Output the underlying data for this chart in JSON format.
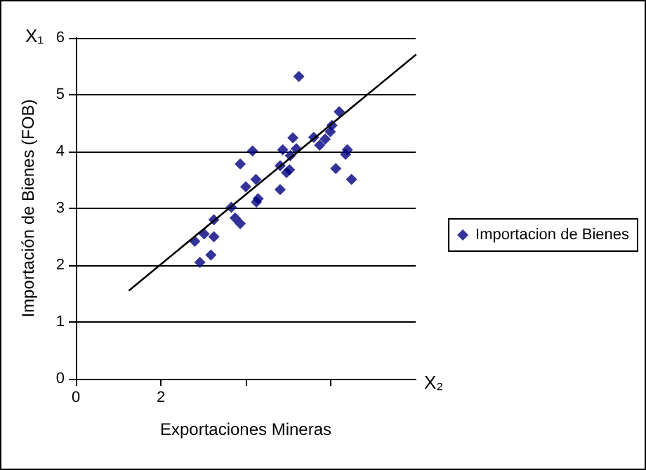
{
  "chart_data": {
    "type": "scatter",
    "xlabel": "Exportaciones Mineras",
    "ylabel": "Importación de Bienes (FOB)",
    "annotations": [
      "X₁",
      "X₂"
    ],
    "xlim": [
      0,
      8
    ],
    "xticks": [
      0,
      2,
      {
        "value": 4,
        "label": null
      },
      {
        "value": 6,
        "label": null
      }
    ],
    "ylim": [
      0,
      6
    ],
    "yticks": [
      0,
      1,
      2,
      3,
      4,
      5,
      6
    ],
    "grid": "y",
    "legend": "right",
    "marker": "diamond",
    "series": [
      {
        "name": "Importacion de Bienes",
        "color": "#000080",
        "x": [
          5.25,
          6.2,
          6.03,
          5.99,
          5.87,
          5.6,
          5.74,
          5.11,
          4.87,
          5.19,
          5.05,
          4.16,
          6.39,
          6.35,
          3.87,
          4.81,
          5.03,
          4.96,
          6.12,
          6.49,
          4.24,
          4.0,
          4.81,
          4.29,
          4.25,
          3.66,
          3.25,
          3.75,
          3.87,
          3.02,
          3.25,
          2.8,
          3.18,
          2.92
        ],
        "values": [
          5.32,
          4.7,
          4.46,
          4.35,
          4.22,
          4.25,
          4.11,
          4.24,
          4.03,
          4.05,
          3.93,
          4.01,
          4.03,
          3.95,
          3.78,
          3.75,
          3.68,
          3.63,
          3.7,
          3.51,
          3.51,
          3.38,
          3.33,
          3.17,
          3.11,
          3.02,
          2.8,
          2.83,
          2.73,
          2.55,
          2.5,
          2.42,
          2.18,
          2.05
        ]
      },
      {
        "color": "#000000",
        "type": "line",
        "marker": "none",
        "line_style": "solid",
        "x": [
          1.26,
          8
        ],
        "values": [
          1.56,
          5.7
        ]
      }
    ]
  }
}
